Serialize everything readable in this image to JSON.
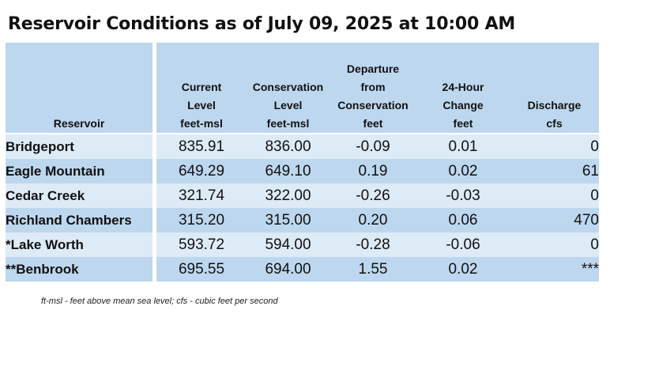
{
  "title": "Reservoir Conditions as of July 09, 2025 at 10:00 AM",
  "columns": [
    {
      "lines": [
        "Reservoir"
      ]
    },
    {
      "lines": [
        "Current",
        "Level",
        "feet-msl"
      ]
    },
    {
      "lines": [
        "Conservation",
        "Level",
        "feet-msl"
      ]
    },
    {
      "lines": [
        "Departure",
        "from",
        "Conservation",
        "feet"
      ]
    },
    {
      "lines": [
        "24-Hour",
        "Change",
        "feet"
      ]
    },
    {
      "lines": [
        "Discharge",
        "cfs"
      ]
    }
  ],
  "rows": [
    {
      "name": "Bridgeport",
      "current": "835.91",
      "conservation": "836.00",
      "departure": "-0.09",
      "change": "0.01",
      "discharge": "0"
    },
    {
      "name": "Eagle Mountain",
      "current": "649.29",
      "conservation": "649.10",
      "departure": "0.19",
      "change": "0.02",
      "discharge": "61"
    },
    {
      "name": "Cedar Creek",
      "current": "321.74",
      "conservation": "322.00",
      "departure": "-0.26",
      "change": "-0.03",
      "discharge": "0"
    },
    {
      "name": "Richland Chambers",
      "current": "315.20",
      "conservation": "315.00",
      "departure": "0.20",
      "change": "0.06",
      "discharge": "470"
    },
    {
      "name": "*Lake Worth",
      "current": "593.72",
      "conservation": "594.00",
      "departure": "-0.28",
      "change": "-0.06",
      "discharge": "0"
    },
    {
      "name": "**Benbrook",
      "current": "695.55",
      "conservation": "694.00",
      "departure": "1.55",
      "change": "0.02",
      "discharge": "***"
    }
  ],
  "footnote": "ft-msl - feet above mean sea level; cfs - cubic feet per second",
  "colors": {
    "header_bg": "#bdd7ee",
    "row_light": "#ddebf7",
    "row_dark": "#bdd7ee"
  }
}
